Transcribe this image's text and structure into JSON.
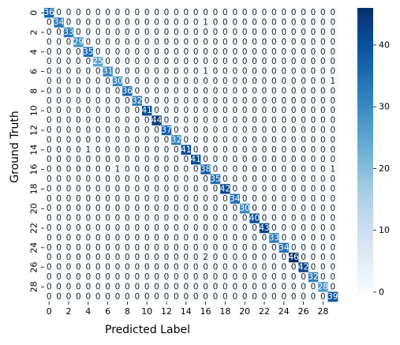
{
  "chart_data": {
    "type": "heatmap",
    "title": "",
    "xlabel": "Predicted Label",
    "ylabel": "Ground Truth",
    "x_tick_labels": [
      "0",
      "2",
      "4",
      "6",
      "8",
      "10",
      "12",
      "14",
      "16",
      "18",
      "20",
      "22",
      "24",
      "26",
      "28"
    ],
    "y_tick_labels": [
      "0",
      "2",
      "4",
      "6",
      "8",
      "10",
      "12",
      "14",
      "16",
      "18",
      "20",
      "22",
      "24",
      "26",
      "28"
    ],
    "classes": [
      0,
      1,
      2,
      3,
      4,
      5,
      6,
      7,
      8,
      9,
      10,
      11,
      12,
      13,
      14,
      15,
      16,
      17,
      18,
      19,
      20,
      21,
      22,
      23,
      24,
      25,
      26,
      27,
      28,
      29
    ],
    "diagonal": [
      36,
      34,
      33,
      29,
      35,
      25,
      31,
      30,
      36,
      32,
      41,
      44,
      37,
      32,
      41,
      41,
      38,
      35,
      42,
      34,
      30,
      40,
      43,
      33,
      34,
      46,
      42,
      32,
      28,
      39
    ],
    "off_diagonal": [
      {
        "row": 1,
        "col": 16,
        "value": 1
      },
      {
        "row": 6,
        "col": 16,
        "value": 1
      },
      {
        "row": 7,
        "col": 29,
        "value": 1
      },
      {
        "row": 14,
        "col": 4,
        "value": 1
      },
      {
        "row": 16,
        "col": 7,
        "value": 1
      },
      {
        "row": 16,
        "col": 29,
        "value": 1
      },
      {
        "row": 25,
        "col": 16,
        "value": 2
      }
    ],
    "colorbar": {
      "colormap": "Blues",
      "range": [
        0,
        46
      ],
      "ticks": [
        "0",
        "10",
        "20",
        "30",
        "40"
      ]
    },
    "grid": false,
    "legend": "colorbar-right"
  }
}
